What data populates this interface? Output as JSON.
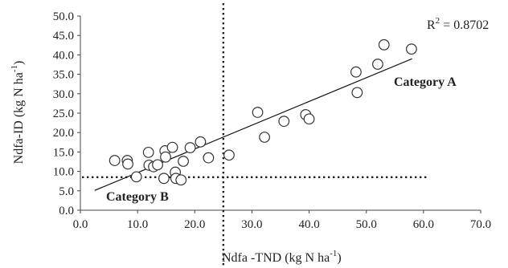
{
  "chart_data": {
    "type": "scatter",
    "xlabel": "Ndfa -TND (kg N ha",
    "xlabel_sup": "-1",
    "xlabel_suffix": ")",
    "ylabel": "Ndfa-ID (kg N ha",
    "ylabel_sup": "-1",
    "ylabel_suffix": ")",
    "xlim": [
      0,
      70
    ],
    "ylim": [
      0,
      50
    ],
    "x_ticks": [
      "0.0",
      "10.0",
      "20.0",
      "30.0",
      "40.0",
      "50.0",
      "60.0",
      "70.0"
    ],
    "y_ticks": [
      "0.0",
      "5.0",
      "10.0",
      "15.0",
      "20.0",
      "25.0",
      "30.0",
      "35.0",
      "40.0",
      "45.0",
      "50.0"
    ],
    "r2_prefix": "R",
    "r2_sup": "2",
    "r2_value": " = 0.8702",
    "category_a": "Category A",
    "category_b": "Category B",
    "trendline": {
      "x": [
        2.5,
        58.0
      ],
      "y": [
        5.1,
        39.0
      ]
    },
    "threshold_x": 25,
    "threshold_y": 8.5,
    "threshold_y_xrange": [
      0,
      61
    ],
    "points": [
      {
        "x": 6.0,
        "y": 12.8
      },
      {
        "x": 8.2,
        "y": 12.8
      },
      {
        "x": 8.3,
        "y": 11.9
      },
      {
        "x": 9.8,
        "y": 8.6
      },
      {
        "x": 11.9,
        "y": 14.9
      },
      {
        "x": 12.0,
        "y": 11.6
      },
      {
        "x": 12.8,
        "y": 11.2
      },
      {
        "x": 13.5,
        "y": 11.7
      },
      {
        "x": 14.6,
        "y": 8.2
      },
      {
        "x": 14.8,
        "y": 15.3
      },
      {
        "x": 14.9,
        "y": 13.7
      },
      {
        "x": 16.1,
        "y": 16.2
      },
      {
        "x": 16.6,
        "y": 9.8
      },
      {
        "x": 16.7,
        "y": 8.2
      },
      {
        "x": 17.6,
        "y": 7.8
      },
      {
        "x": 18.0,
        "y": 12.6
      },
      {
        "x": 19.2,
        "y": 16.1
      },
      {
        "x": 21.0,
        "y": 17.6
      },
      {
        "x": 22.4,
        "y": 13.5
      },
      {
        "x": 26.0,
        "y": 14.2
      },
      {
        "x": 31.0,
        "y": 25.2
      },
      {
        "x": 32.2,
        "y": 18.8
      },
      {
        "x": 35.6,
        "y": 22.9
      },
      {
        "x": 39.4,
        "y": 24.6
      },
      {
        "x": 40.0,
        "y": 23.5
      },
      {
        "x": 48.2,
        "y": 35.6
      },
      {
        "x": 48.4,
        "y": 30.3
      },
      {
        "x": 52.0,
        "y": 37.6
      },
      {
        "x": 53.1,
        "y": 42.6
      },
      {
        "x": 57.9,
        "y": 41.5
      }
    ]
  }
}
